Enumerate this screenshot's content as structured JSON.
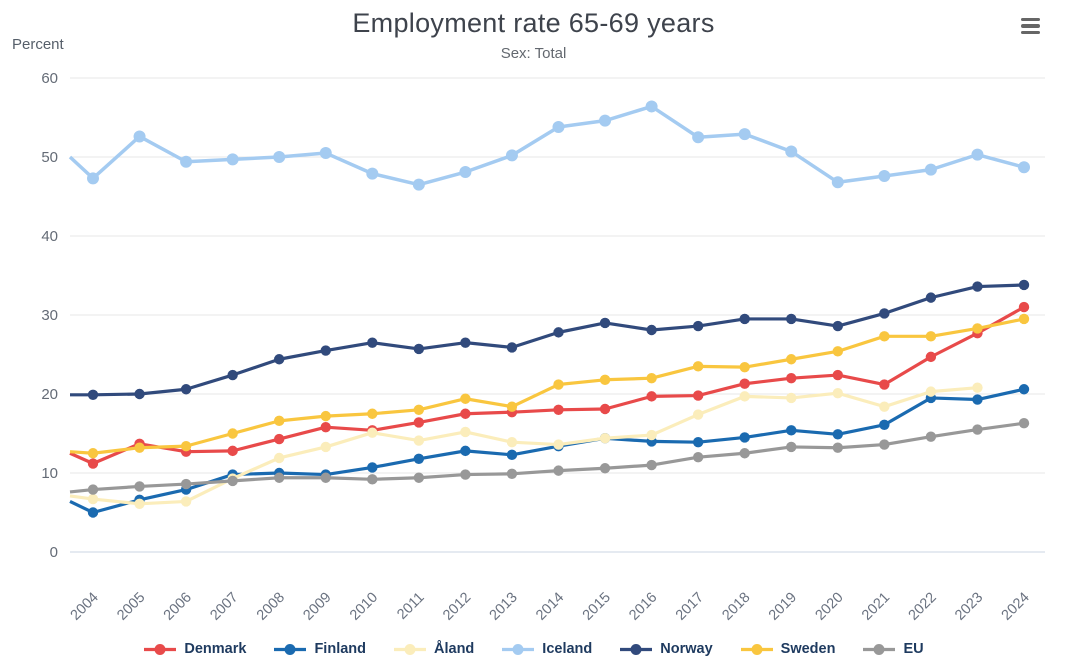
{
  "header": {
    "title": "Employment rate 65-69 years",
    "subtitle": "Sex: Total"
  },
  "toolbar": {
    "context_menu_icon": "hamburger-menu-icon"
  },
  "y_axis": {
    "title": "Percent",
    "ticks": [
      0,
      10,
      20,
      30,
      40,
      50,
      60
    ]
  },
  "x_axis": {
    "categories": [
      "2004",
      "2005",
      "2006",
      "2007",
      "2008",
      "2009",
      "2010",
      "2011",
      "2012",
      "2013",
      "2014",
      "2015",
      "2016",
      "2017",
      "2018",
      "2019",
      "2020",
      "2021",
      "2022",
      "2023",
      "2024"
    ]
  },
  "chart_data": {
    "type": "line",
    "title": "Employment rate 65-69 years",
    "subtitle": "Sex: Total",
    "ylabel": "Percent",
    "ylim": [
      0,
      60
    ],
    "grid": true,
    "legend_position": "bottom",
    "categories": [
      2004,
      2005,
      2006,
      2007,
      2008,
      2009,
      2010,
      2011,
      2012,
      2013,
      2014,
      2015,
      2016,
      2017,
      2018,
      2019,
      2020,
      2021,
      2022,
      2023,
      2024
    ],
    "series": [
      {
        "name": "Denmark",
        "color": "#e84a4a",
        "edge_value": 12.5,
        "values": [
          11.2,
          13.7,
          12.7,
          12.8,
          14.3,
          15.8,
          15.4,
          16.4,
          17.5,
          17.7,
          18.0,
          18.1,
          19.7,
          19.8,
          21.3,
          22.0,
          22.4,
          21.2,
          24.7,
          27.7,
          31.0
        ]
      },
      {
        "name": "Finland",
        "color": "#1a6ab0",
        "edge_value": 6.4,
        "values": [
          5.0,
          6.6,
          7.9,
          9.8,
          10.0,
          9.8,
          10.7,
          11.8,
          12.8,
          12.3,
          13.4,
          14.4,
          14.0,
          13.9,
          14.5,
          15.4,
          14.9,
          16.1,
          19.5,
          19.3,
          20.6
        ]
      },
      {
        "name": "Åland",
        "color": "#fbedbb",
        "edge_value": 7.1,
        "values": [
          6.7,
          6.1,
          6.4,
          9.3,
          11.9,
          13.3,
          15.1,
          14.1,
          15.2,
          13.9,
          13.6,
          14.4,
          14.8,
          17.4,
          19.7,
          19.5,
          20.1,
          18.4,
          20.3,
          20.8,
          null
        ]
      },
      {
        "name": "Iceland",
        "color": "#a4cbf1",
        "edge_value": 50.0,
        "values": [
          47.3,
          52.6,
          49.4,
          49.7,
          50.0,
          50.5,
          47.9,
          46.5,
          48.1,
          50.2,
          53.8,
          54.6,
          56.4,
          52.5,
          52.9,
          50.7,
          46.8,
          47.6,
          48.4,
          50.3,
          48.7
        ]
      },
      {
        "name": "Norway",
        "color": "#314a7c",
        "edge_value": 19.9,
        "values": [
          19.9,
          20.0,
          20.6,
          22.4,
          24.4,
          25.5,
          26.5,
          25.7,
          26.5,
          25.9,
          27.8,
          29.0,
          28.1,
          28.6,
          29.5,
          29.5,
          28.6,
          30.2,
          32.2,
          33.6,
          33.8
        ]
      },
      {
        "name": "Sweden",
        "color": "#f9c63f",
        "edge_value": 12.7,
        "values": [
          12.5,
          13.2,
          13.4,
          15.0,
          16.6,
          17.2,
          17.5,
          18.0,
          19.4,
          18.4,
          21.2,
          21.8,
          22.0,
          23.5,
          23.4,
          24.4,
          25.4,
          27.3,
          27.3,
          28.3,
          29.5
        ]
      },
      {
        "name": "EU",
        "color": "#989898",
        "edge_value": 7.6,
        "values": [
          7.9,
          8.3,
          8.6,
          9.0,
          9.4,
          9.4,
          9.2,
          9.4,
          9.8,
          9.9,
          10.3,
          10.6,
          11.0,
          12.0,
          12.5,
          13.3,
          13.2,
          13.6,
          14.6,
          15.5,
          16.3
        ]
      }
    ]
  }
}
